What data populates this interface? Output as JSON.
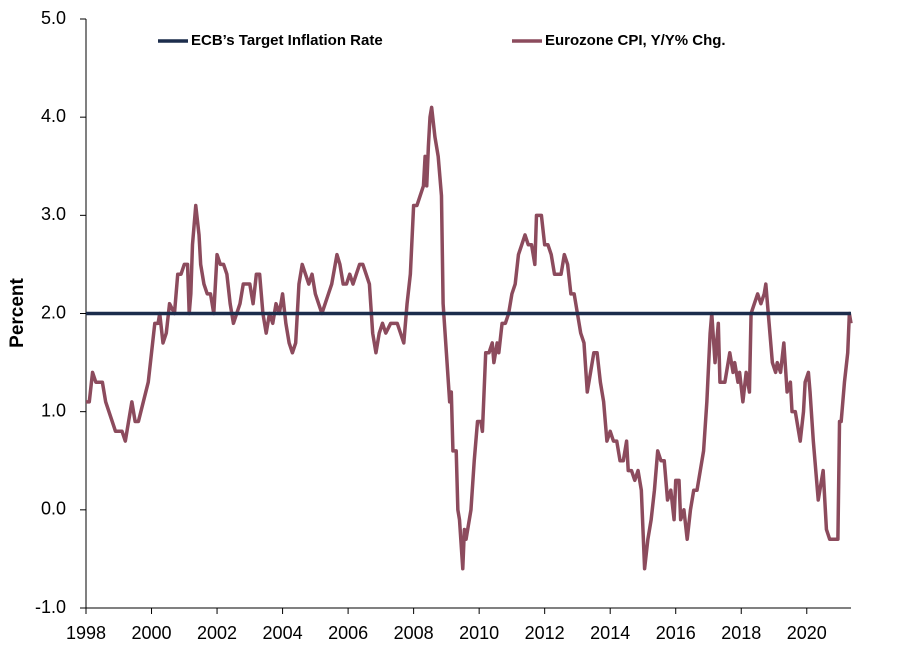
{
  "chart_data": {
    "type": "line",
    "ylabel": "Percent",
    "legend": "upper center",
    "grid": false,
    "xlim": [
      1998,
      2021.35
    ],
    "xticks": [
      1998,
      2000,
      2002,
      2004,
      2006,
      2008,
      2010,
      2012,
      2014,
      2016,
      2018,
      2020
    ],
    "ylim": [
      -1,
      5
    ],
    "yticks": [
      {
        "value": -1,
        "label": "-1.0"
      },
      {
        "value": 0,
        "label": "0.0"
      },
      {
        "value": 1,
        "label": "1.0"
      },
      {
        "value": 2,
        "label": "2.0"
      },
      {
        "value": 3,
        "label": "3.0"
      },
      {
        "value": 4,
        "label": "4.0"
      },
      {
        "value": 5,
        "label": "5.0"
      }
    ],
    "series": [
      {
        "name": "ECB’s Target Inflation Rate",
        "color": "#1c2d4c",
        "x": [
          1998,
          2021.35
        ],
        "values": [
          2,
          2
        ]
      },
      {
        "name": "Eurozone CPI, Y/Y% Chg.",
        "color": "#8c4b5d",
        "x": [
          1998.0,
          1998.1,
          1998.2,
          1998.3,
          1998.5,
          1998.6,
          1998.8,
          1998.9,
          1999.1,
          1999.2,
          1999.4,
          1999.5,
          1999.6,
          1999.75,
          1999.9,
          2000.0,
          2000.1,
          2000.2,
          2000.25,
          2000.35,
          2000.45,
          2000.55,
          2000.7,
          2000.8,
          2000.9,
          2001.0,
          2001.1,
          2001.15,
          2001.2,
          2001.25,
          2001.35,
          2001.45,
          2001.5,
          2001.6,
          2001.7,
          2001.8,
          2001.9,
          2002.0,
          2002.1,
          2002.2,
          2002.3,
          2002.4,
          2002.5,
          2002.6,
          2002.7,
          2002.8,
          2002.9,
          2003.0,
          2003.1,
          2003.2,
          2003.3,
          2003.4,
          2003.5,
          2003.6,
          2003.7,
          2003.8,
          2003.9,
          2004.0,
          2004.1,
          2004.2,
          2004.3,
          2004.4,
          2004.5,
          2004.6,
          2004.7,
          2004.8,
          2004.9,
          2005.0,
          2005.1,
          2005.2,
          2005.3,
          2005.4,
          2005.5,
          2005.66,
          2005.75,
          2005.85,
          2005.95,
          2006.05,
          2006.15,
          2006.25,
          2006.35,
          2006.45,
          2006.55,
          2006.65,
          2006.75,
          2006.85,
          2006.95,
          2007.05,
          2007.15,
          2007.3,
          2007.5,
          2007.6,
          2007.7,
          2007.8,
          2007.9,
          2008.0,
          2008.1,
          2008.2,
          2008.3,
          2008.35,
          2008.4,
          2008.45,
          2008.5,
          2008.55,
          2008.65,
          2008.75,
          2008.85,
          2008.9,
          2009.0,
          2009.1,
          2009.15,
          2009.2,
          2009.3,
          2009.35,
          2009.4,
          2009.5,
          2009.55,
          2009.6,
          2009.75,
          2009.85,
          2009.95,
          2010.05,
          2010.1,
          2010.2,
          2010.3,
          2010.4,
          2010.45,
          2010.55,
          2010.6,
          2010.7,
          2010.8,
          2010.9,
          2011.0,
          2011.1,
          2011.2,
          2011.3,
          2011.4,
          2011.5,
          2011.6,
          2011.7,
          2011.75,
          2011.9,
          2012.0,
          2012.1,
          2012.2,
          2012.3,
          2012.5,
          2012.6,
          2012.7,
          2012.8,
          2012.9,
          2013.0,
          2013.1,
          2013.2,
          2013.3,
          2013.4,
          2013.5,
          2013.6,
          2013.7,
          2013.8,
          2013.9,
          2014.0,
          2014.1,
          2014.2,
          2014.3,
          2014.4,
          2014.5,
          2014.55,
          2014.65,
          2014.75,
          2014.85,
          2014.95,
          2015.0,
          2015.05,
          2015.15,
          2015.25,
          2015.35,
          2015.45,
          2015.55,
          2015.65,
          2015.75,
          2015.85,
          2015.95,
          2016.0,
          2016.1,
          2016.15,
          2016.25,
          2016.35,
          2016.45,
          2016.55,
          2016.65,
          2016.75,
          2016.85,
          2016.95,
          2017.05,
          2017.1,
          2017.2,
          2017.3,
          2017.35,
          2017.5,
          2017.65,
          2017.75,
          2017.8,
          2017.9,
          2017.95,
          2018.05,
          2018.15,
          2018.25,
          2018.3,
          2018.4,
          2018.5,
          2018.6,
          2018.7,
          2018.75,
          2018.85,
          2018.95,
          2019.05,
          2019.1,
          2019.2,
          2019.3,
          2019.4,
          2019.5,
          2019.55,
          2019.65,
          2019.75,
          2019.8,
          2019.9,
          2019.95,
          2020.05,
          2020.1,
          2020.2,
          2020.3,
          2020.35,
          2020.45,
          2020.5,
          2020.6,
          2020.7,
          2020.95,
          2021.0,
          2021.05,
          2021.15,
          2021.25,
          2021.3,
          2021.35
        ],
        "values": [
          1.1,
          1.1,
          1.4,
          1.3,
          1.3,
          1.1,
          0.9,
          0.8,
          0.8,
          0.7,
          1.1,
          0.9,
          0.9,
          1.1,
          1.3,
          1.6,
          1.9,
          1.9,
          2.0,
          1.7,
          1.8,
          2.1,
          2.0,
          2.4,
          2.4,
          2.5,
          2.5,
          2.0,
          2.2,
          2.7,
          3.1,
          2.8,
          2.5,
          2.3,
          2.2,
          2.2,
          2.0,
          2.6,
          2.5,
          2.5,
          2.4,
          2.1,
          1.9,
          2.0,
          2.1,
          2.3,
          2.3,
          2.3,
          2.1,
          2.4,
          2.4,
          2.0,
          1.8,
          2.0,
          1.9,
          2.1,
          2.0,
          2.2,
          1.9,
          1.7,
          1.6,
          1.7,
          2.3,
          2.5,
          2.4,
          2.3,
          2.4,
          2.2,
          2.1,
          2.0,
          2.1,
          2.2,
          2.3,
          2.6,
          2.5,
          2.3,
          2.3,
          2.4,
          2.3,
          2.4,
          2.5,
          2.5,
          2.4,
          2.3,
          1.8,
          1.6,
          1.8,
          1.9,
          1.8,
          1.9,
          1.9,
          1.8,
          1.7,
          2.1,
          2.4,
          3.1,
          3.1,
          3.2,
          3.3,
          3.6,
          3.3,
          3.7,
          4.0,
          4.1,
          3.8,
          3.6,
          3.2,
          2.1,
          1.6,
          1.1,
          1.2,
          0.6,
          0.6,
          0.0,
          -0.1,
          -0.6,
          -0.2,
          -0.3,
          0.0,
          0.5,
          0.9,
          0.9,
          0.8,
          1.6,
          1.6,
          1.7,
          1.5,
          1.7,
          1.6,
          1.9,
          1.9,
          2.0,
          2.2,
          2.3,
          2.6,
          2.7,
          2.8,
          2.7,
          2.7,
          2.5,
          3.0,
          3.0,
          2.7,
          2.7,
          2.6,
          2.4,
          2.4,
          2.6,
          2.5,
          2.2,
          2.2,
          2.0,
          1.8,
          1.7,
          1.2,
          1.4,
          1.6,
          1.6,
          1.3,
          1.1,
          0.7,
          0.8,
          0.7,
          0.7,
          0.5,
          0.5,
          0.7,
          0.4,
          0.4,
          0.3,
          0.4,
          0.2,
          -0.2,
          -0.6,
          -0.3,
          -0.1,
          0.2,
          0.6,
          0.5,
          0.5,
          0.1,
          0.2,
          -0.1,
          0.3,
          0.3,
          -0.1,
          0.0,
          -0.3,
          0.0,
          0.2,
          0.2,
          0.4,
          0.6,
          1.1,
          1.8,
          2.0,
          1.5,
          1.9,
          1.3,
          1.3,
          1.6,
          1.4,
          1.5,
          1.3,
          1.4,
          1.1,
          1.4,
          1.2,
          2.0,
          2.1,
          2.2,
          2.1,
          2.2,
          2.3,
          1.9,
          1.5,
          1.4,
          1.5,
          1.4,
          1.7,
          1.2,
          1.3,
          1.0,
          1.0,
          0.8,
          0.7,
          1.0,
          1.3,
          1.4,
          1.2,
          0.7,
          0.3,
          0.1,
          0.3,
          0.4,
          -0.2,
          -0.3,
          -0.3,
          0.9,
          0.9,
          1.3,
          1.6,
          2.0,
          1.9
        ]
      }
    ]
  }
}
